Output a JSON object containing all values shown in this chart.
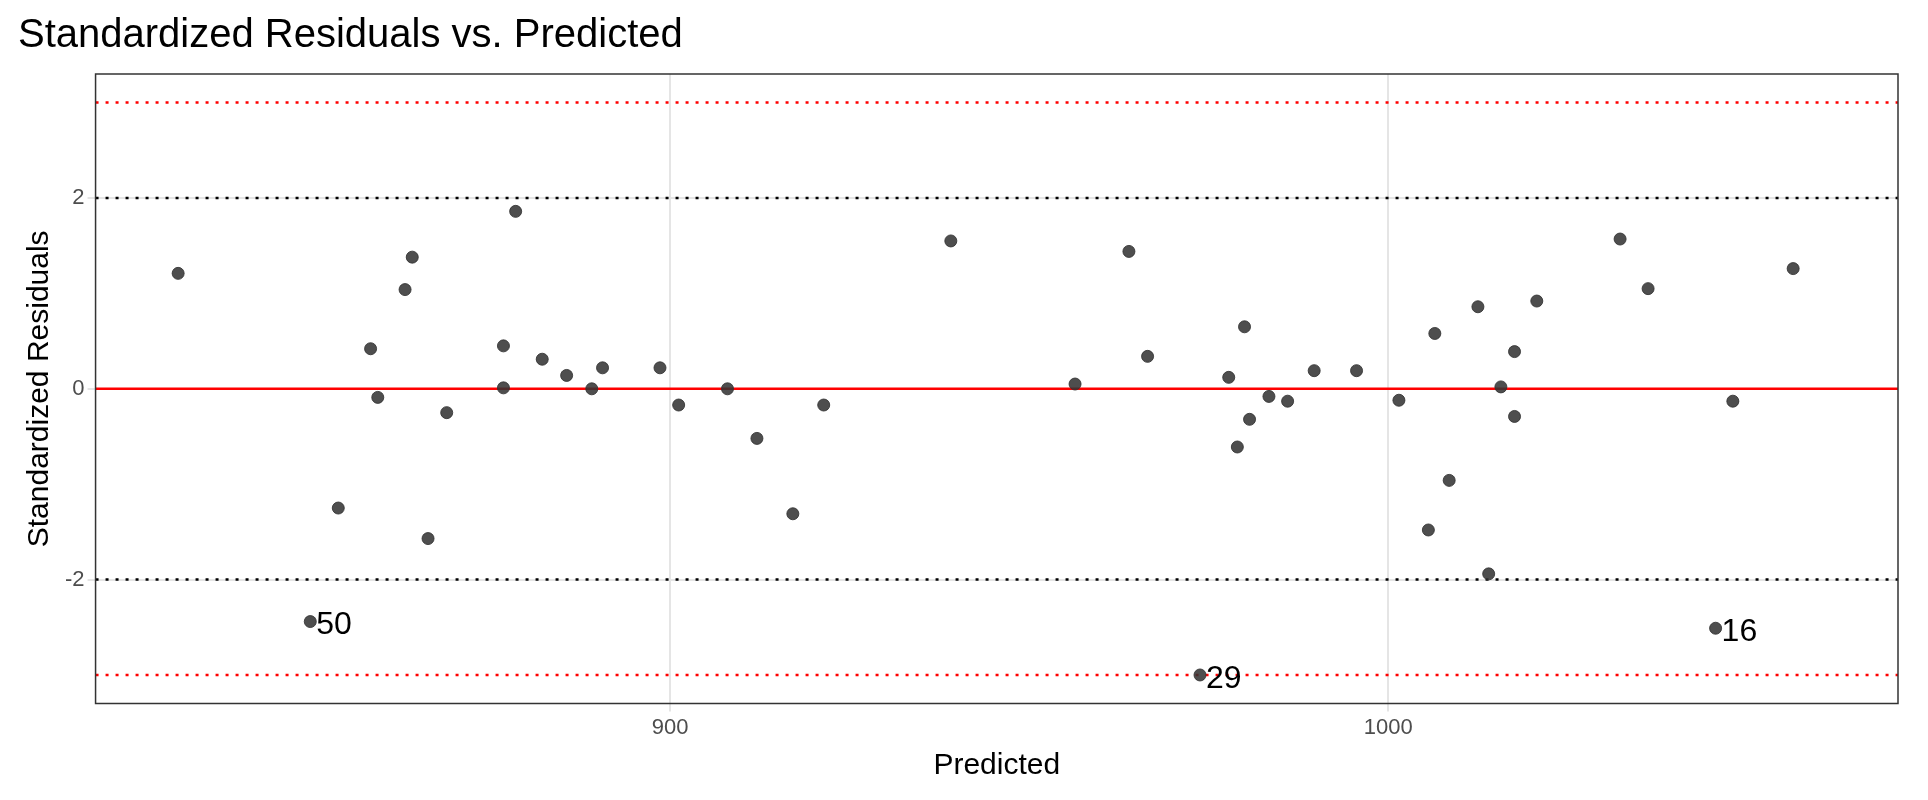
{
  "chart_data": {
    "type": "scatter",
    "title": "Standardized Residuals vs. Predicted",
    "xlabel": "Predicted",
    "ylabel": "Standardized Residuals",
    "series": [
      {
        "color": "#333333",
        "x": [
          831.5,
          849.9,
          853.8,
          858.3,
          859.3,
          863.1,
          864.1,
          866.3,
          868.9,
          876.8,
          876.8,
          878.5,
          882.2,
          885.6,
          889.1,
          890.6,
          898.6,
          901.2,
          908.0,
          912.1,
          917.1,
          921.4,
          939.1,
          956.4,
          963.9,
          966.5,
          973.8,
          977.8,
          979.0,
          980.0,
          980.7,
          983.4,
          986.0,
          989.7,
          995.6,
          1001.5,
          1005.6,
          1006.5,
          1008.5,
          1012.5,
          1014.0,
          1015.7,
          1017.6,
          1017.6,
          1020.7,
          1032.3,
          1036.2,
          1045.6,
          1048.0,
          1056.4
        ],
        "values": [
          1.21,
          -2.44,
          -1.25,
          0.42,
          -0.09,
          1.04,
          1.38,
          -1.57,
          -0.25,
          0.45,
          0.01,
          1.86,
          0.31,
          0.14,
          0.0,
          0.22,
          0.22,
          -0.17,
          0.0,
          -0.52,
          -1.31,
          -0.17,
          1.55,
          0.05,
          1.44,
          0.34,
          -3.0,
          0.12,
          -0.61,
          0.65,
          -0.32,
          -0.08,
          -0.13,
          0.19,
          0.19,
          -0.12,
          -1.48,
          0.58,
          -0.96,
          0.86,
          -1.94,
          0.02,
          0.39,
          -0.29,
          0.92,
          1.57,
          1.05,
          -2.51,
          -0.13,
          1.26
        ]
      }
    ],
    "xlim": [
      820,
      1071
    ],
    "xticks": [
      900,
      1000
    ],
    "ylim": [
      -3.3,
      3.3
    ],
    "yticks": [
      -2,
      0,
      2
    ],
    "grid": true,
    "marker": "circle",
    "ref_lines": [
      {
        "axis": "y",
        "value": 0,
        "color": "#ff0000",
        "line_style": "solid"
      },
      {
        "axis": "y",
        "value": 2,
        "color": "#000000",
        "line_style": "dotted"
      },
      {
        "axis": "y",
        "value": -2,
        "color": "#000000",
        "line_style": "dotted"
      },
      {
        "axis": "y",
        "value": 3,
        "color": "#ff0000",
        "line_style": "dotted"
      },
      {
        "axis": "y",
        "value": -3,
        "color": "#ff0000",
        "line_style": "dotted"
      }
    ],
    "annotations": [
      {
        "text": "50",
        "x": 849.9,
        "y": -2.44
      },
      {
        "text": "29",
        "x": 973.8,
        "y": -3.0
      },
      {
        "text": "16",
        "x": 1045.6,
        "y": -2.51
      }
    ]
  }
}
